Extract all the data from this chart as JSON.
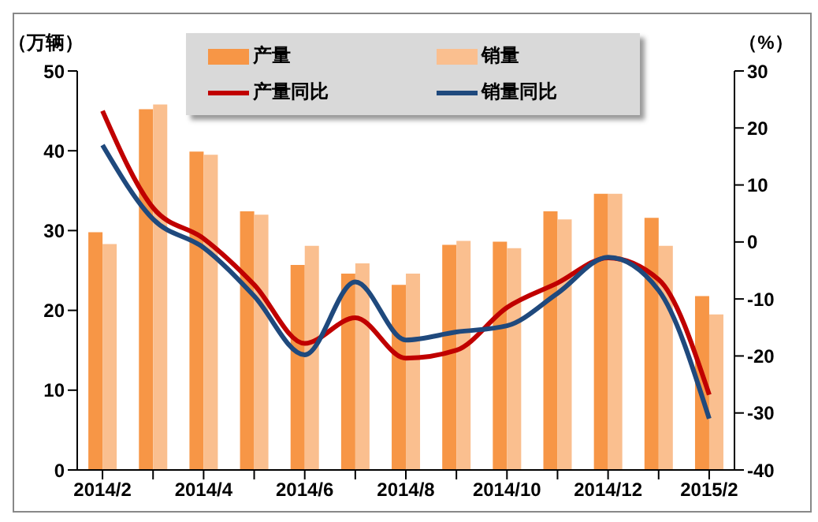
{
  "chart_data": {
    "type": "bar",
    "ylabel": "（万辆）",
    "y2label": "（%）",
    "categories": [
      "2014/2",
      null,
      "2014/4",
      null,
      "2014/6",
      null,
      "2014/8",
      null,
      "2014/10",
      null,
      "2014/12",
      null,
      "2015/2"
    ],
    "series": [
      {
        "name": "产量",
        "color": "#f79646",
        "values": [
          29.8,
          45.2,
          39.9,
          32.4,
          25.7,
          24.6,
          23.2,
          28.2,
          28.6,
          32.4,
          34.6,
          31.6,
          21.8
        ]
      },
      {
        "name": "销量",
        "color": "#fabf8f",
        "values": [
          28.3,
          45.8,
          39.5,
          32.0,
          28.1,
          25.9,
          24.6,
          28.7,
          27.8,
          31.4,
          34.6,
          28.1,
          19.5
        ]
      },
      {
        "name": "产量同比",
        "type": "line",
        "axis": "y2",
        "color": "#c00000",
        "values": [
          23,
          6,
          0.6,
          -7.5,
          -17.8,
          -13.3,
          -20.4,
          -19,
          -11.5,
          -7.2,
          -2.8,
          -6.6,
          -26.8
        ]
      },
      {
        "name": "销量同比",
        "type": "line",
        "axis": "y2",
        "color": "#1f497d",
        "values": [
          17,
          4,
          -1,
          -9.5,
          -19.8,
          -7,
          -17.2,
          -15.8,
          -14.7,
          -9,
          -2.7,
          -8.5,
          -31
        ]
      }
    ],
    "ylim": [
      0,
      50
    ],
    "yticks": [
      0,
      10,
      20,
      30,
      40,
      50
    ],
    "y2lim": [
      -40,
      30
    ],
    "y2ticks": [
      -40,
      -30,
      -20,
      -10,
      0,
      10,
      20,
      30
    ],
    "grid": false,
    "legend": "top",
    "marker": "none",
    "line_style": "solid"
  }
}
